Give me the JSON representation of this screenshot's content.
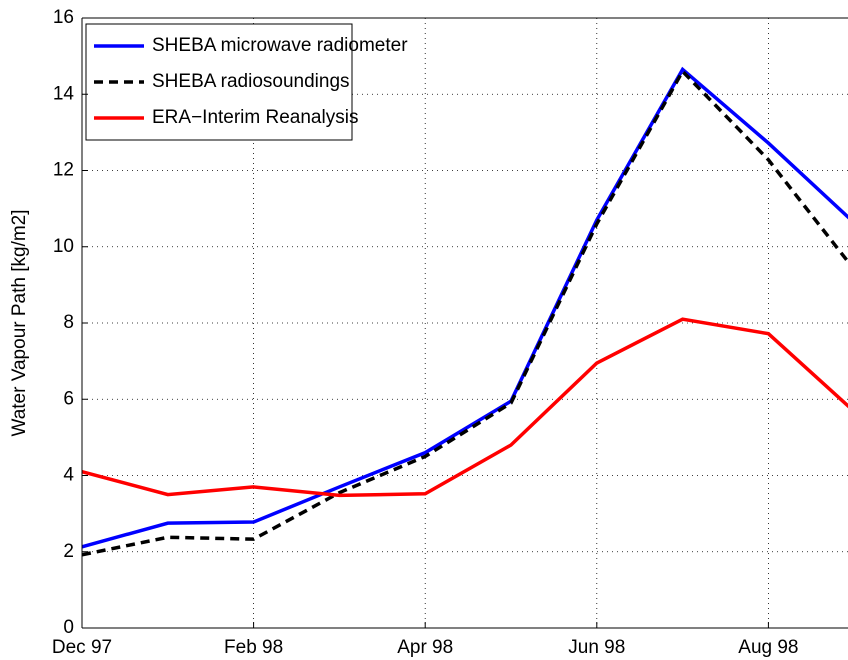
{
  "chart_data": {
    "type": "line",
    "y_label": "Water Vapour Path [kg/m2]",
    "categories": [
      "Dec 97",
      null,
      "Feb 98",
      null,
      "Apr 98",
      null,
      "Jun 98",
      null,
      "Aug 98",
      null
    ],
    "series": [
      {
        "name": "SHEBA microwave radiometer",
        "color": "#0000ff",
        "style": "solid",
        "values": [
          2.13,
          2.75,
          2.78,
          3.7,
          4.6,
          5.95,
          10.7,
          14.65,
          12.72,
          10.63
        ]
      },
      {
        "name": "SHEBA radiosoundings",
        "color": "#000000",
        "style": "dashed",
        "values": [
          1.92,
          2.38,
          2.33,
          3.55,
          4.5,
          5.9,
          10.6,
          14.6,
          12.28,
          9.4
        ]
      },
      {
        "name": "ERA−Interim Reanalysis",
        "color": "#ff0000",
        "style": "solid",
        "values": [
          4.1,
          3.5,
          3.7,
          3.48,
          3.52,
          4.8,
          6.95,
          8.1,
          7.72,
          5.68
        ]
      }
    ],
    "ylim": [
      0,
      16
    ],
    "yticks": [
      0,
      2,
      4,
      6,
      8,
      10,
      12,
      14,
      16
    ],
    "grid": true,
    "legend": "upper left"
  }
}
